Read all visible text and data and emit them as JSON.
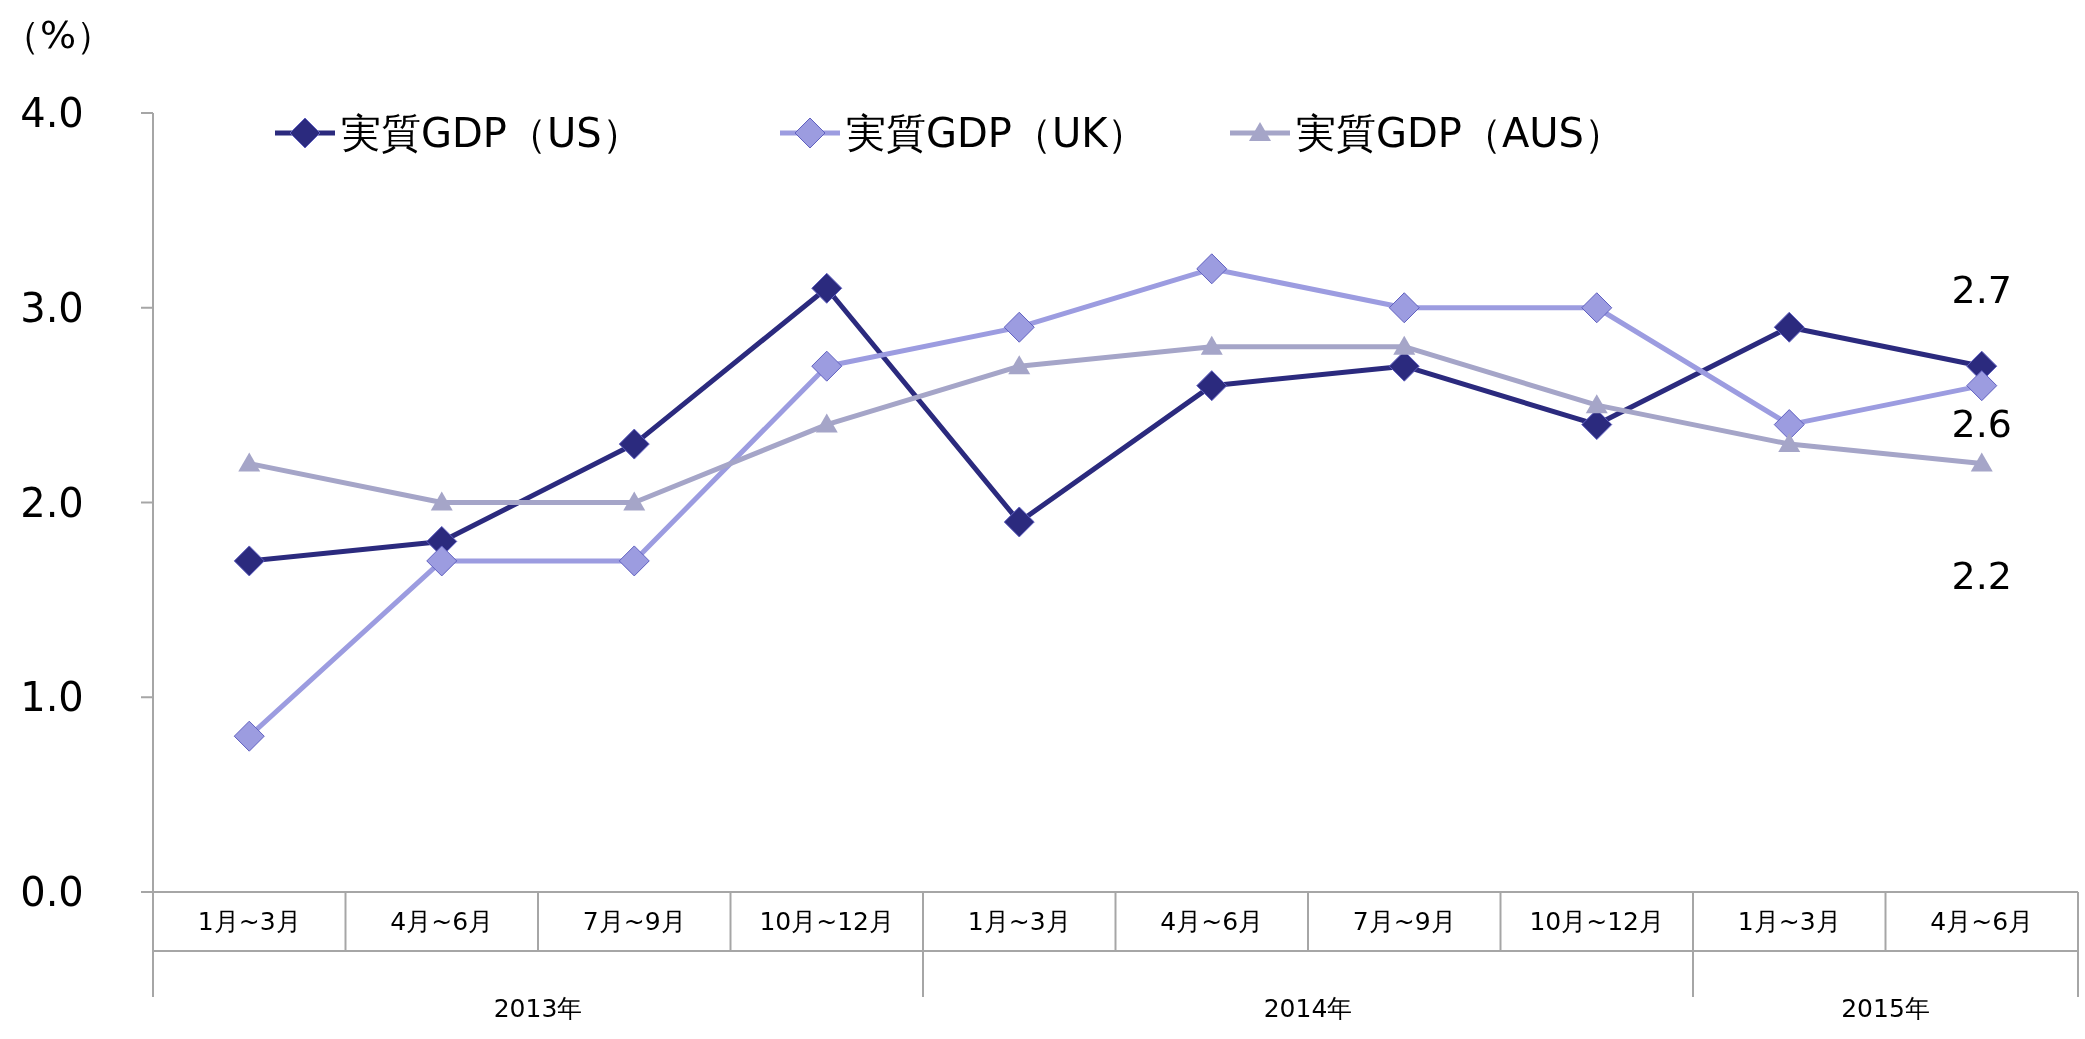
{
  "chart_data": {
    "type": "line",
    "ylabel": "（%）",
    "categories": [
      "1月~3月",
      "4月~6月",
      "7月~9月",
      "10月~12月",
      "1月~3月",
      "4月~6月",
      "7月~9月",
      "10月~12月",
      "1月~3月",
      "4月~6月"
    ],
    "annotations": [
      "2013年",
      "2014年",
      "2015年"
    ],
    "series": [
      {
        "name": "実質GDP（US）",
        "color": "#2b2a7e",
        "marker": "diamond",
        "values": [
          1.7,
          1.8,
          2.3,
          3.1,
          1.9,
          2.6,
          2.7,
          2.4,
          2.9,
          2.7
        ],
        "value_labels": [
          null,
          null,
          null,
          null,
          null,
          null,
          null,
          null,
          null,
          "2.7"
        ]
      },
      {
        "name": "実質GDP（UK）",
        "color": "#9c9ce0",
        "marker": "diamond",
        "values": [
          0.8,
          1.7,
          1.7,
          2.7,
          2.9,
          3.2,
          3.0,
          3.0,
          2.4,
          2.6
        ],
        "value_labels": [
          null,
          null,
          null,
          null,
          null,
          null,
          null,
          null,
          null,
          "2.6"
        ]
      },
      {
        "name": "実質GDP（AUS）",
        "color": "#a5a5c8",
        "marker": "triangle",
        "values": [
          2.2,
          2.0,
          2.0,
          2.4,
          2.7,
          2.8,
          2.8,
          2.5,
          2.3,
          2.2
        ],
        "value_labels": [
          null,
          null,
          null,
          null,
          null,
          null,
          null,
          null,
          null,
          "2.2"
        ]
      }
    ],
    "ylim": [
      0,
      4
    ],
    "yticks": [
      {
        "value": 0,
        "label": "0.0"
      },
      {
        "value": 1,
        "label": "1.0"
      },
      {
        "value": 2,
        "label": "2.0"
      },
      {
        "value": 3,
        "label": "3.0"
      },
      {
        "value": 4,
        "label": "4.0"
      }
    ],
    "grid": false,
    "legend": "top",
    "line_style": "solid"
  }
}
